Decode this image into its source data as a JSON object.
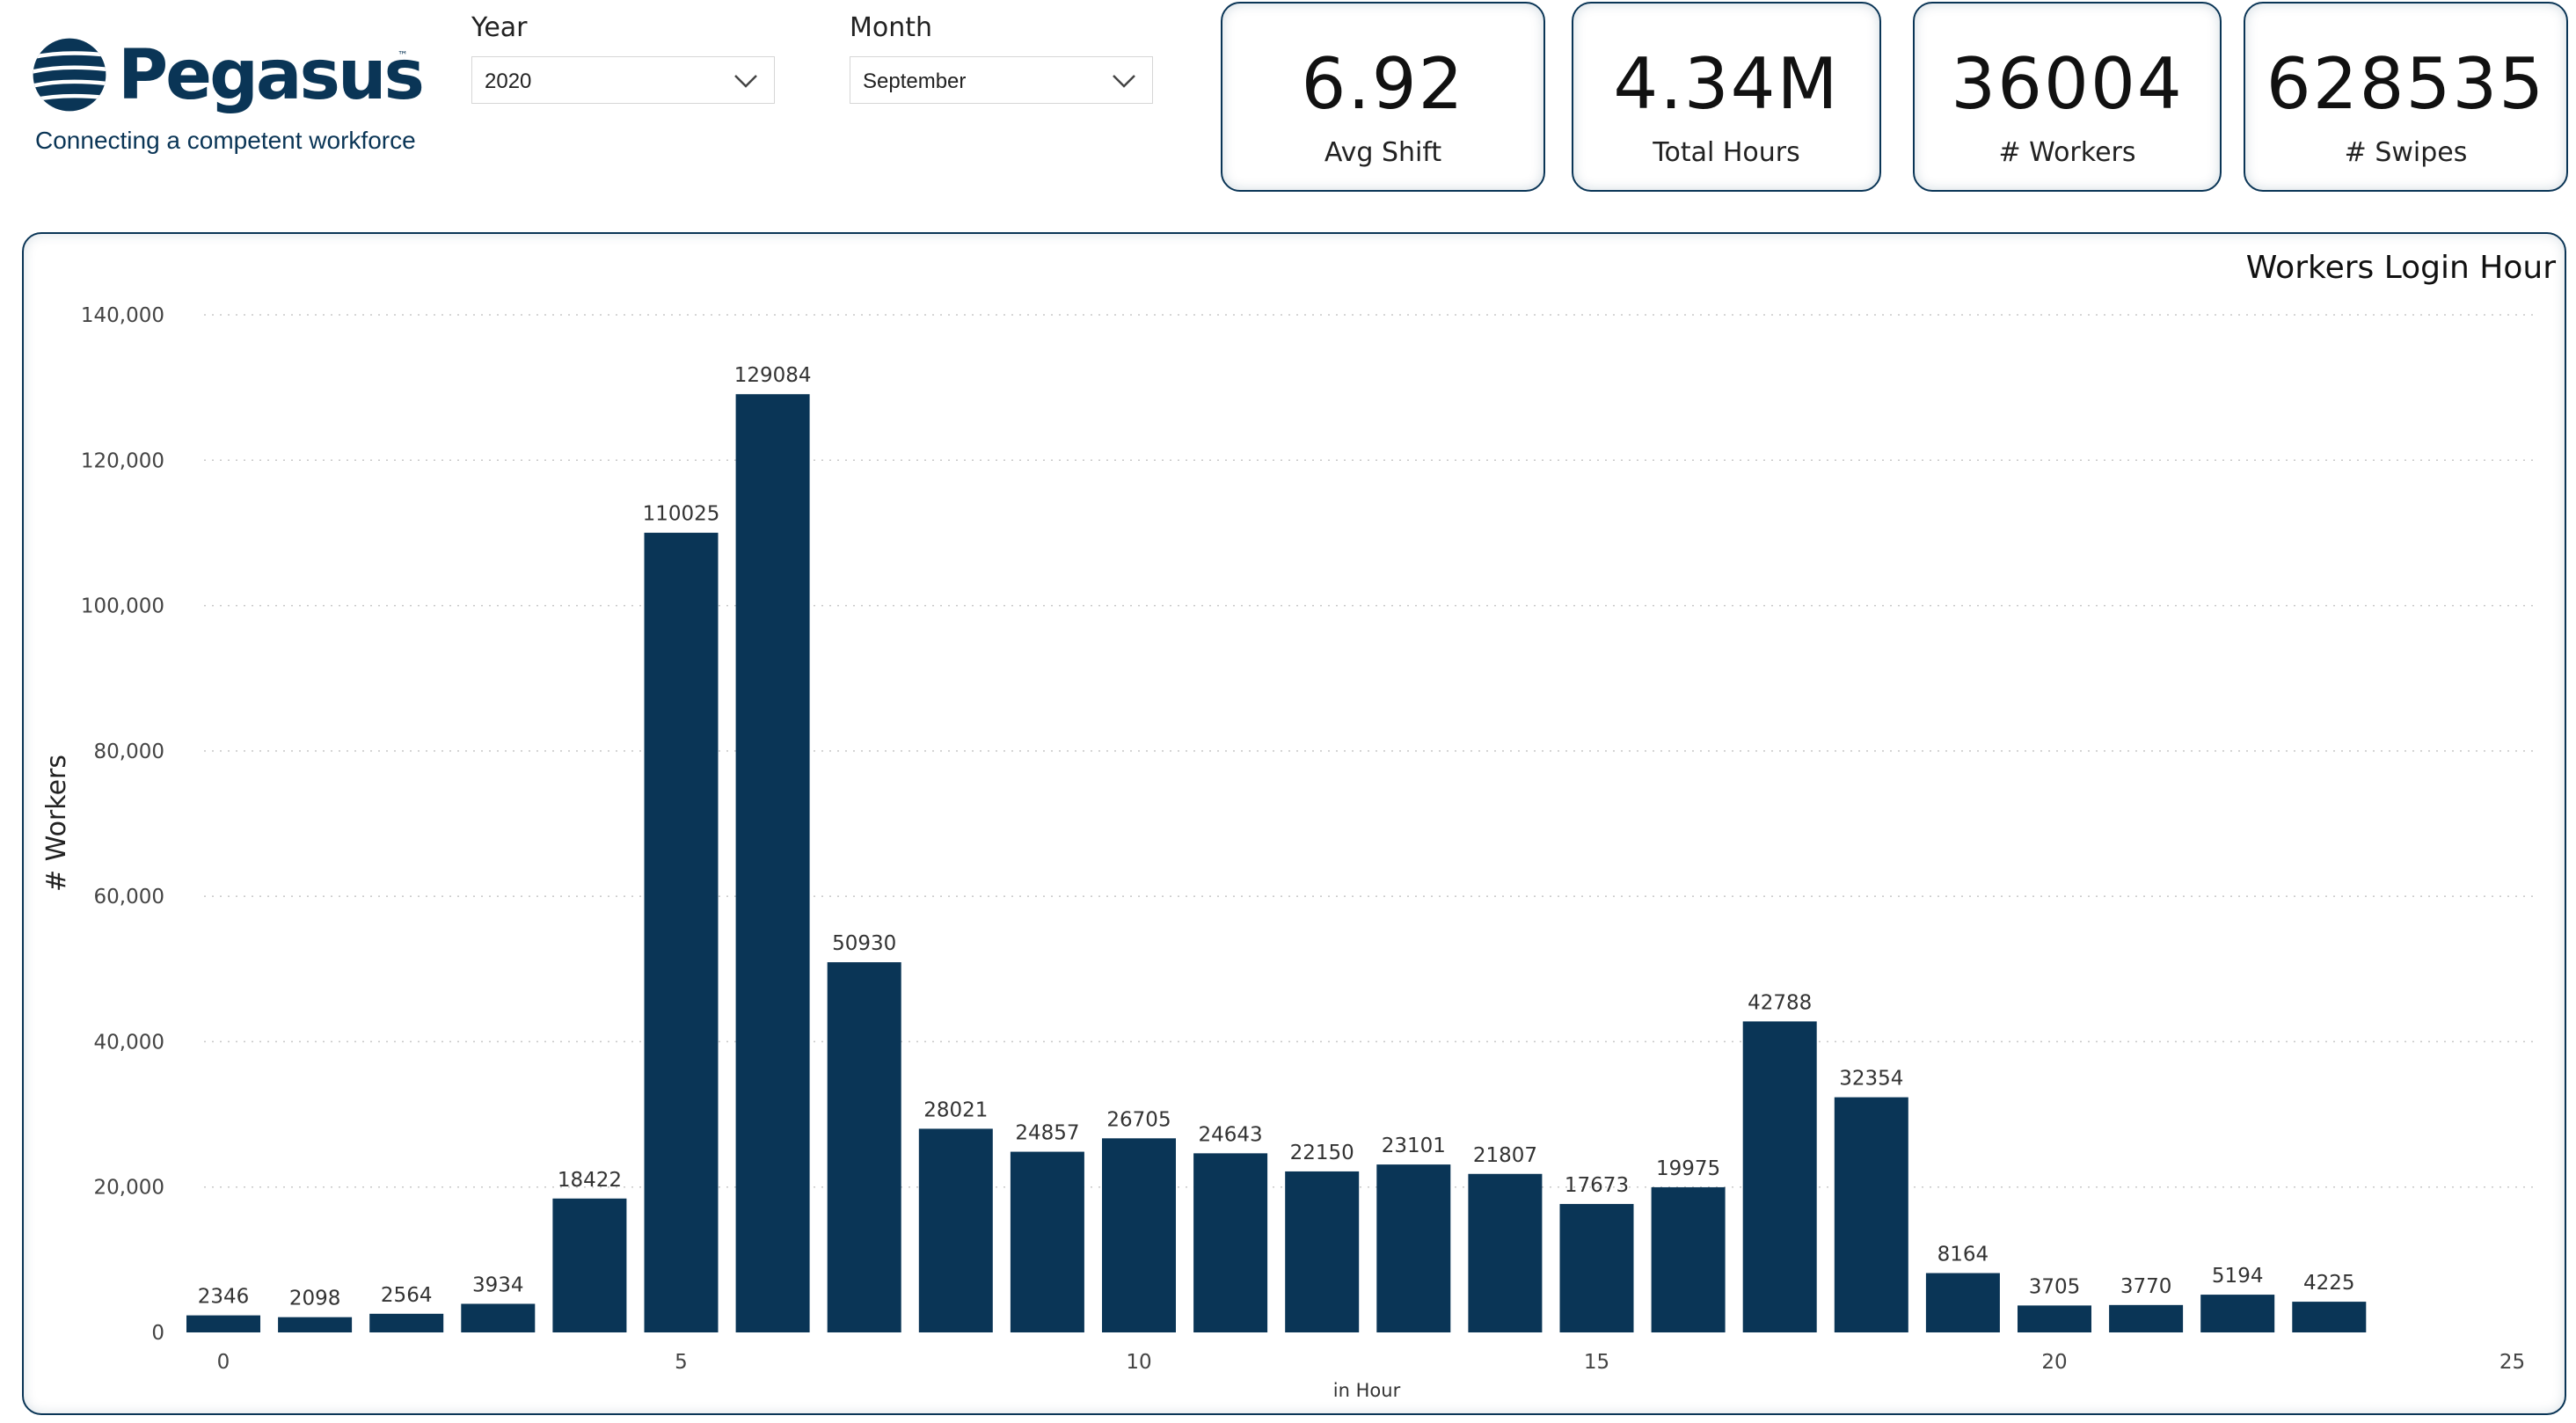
{
  "brand": {
    "name": "Pegasus",
    "trademark": "™",
    "tagline": "Connecting a competent workforce"
  },
  "filters": {
    "year": {
      "label": "Year",
      "value": "2020"
    },
    "month": {
      "label": "Month",
      "value": "September"
    }
  },
  "kpis": [
    {
      "value": "6.92",
      "label": "Avg Shift"
    },
    {
      "value": "4.34M",
      "label": "Total Hours"
    },
    {
      "value": "36004",
      "label": "# Workers"
    },
    {
      "value": "628535",
      "label": "# Swipes"
    }
  ],
  "colors": {
    "bar": "#0a3556",
    "accent": "#0a3556"
  },
  "chart_data": {
    "type": "bar",
    "title": "Workers Login Hour",
    "xlabel": "in Hour",
    "ylabel": "# Workers",
    "x": [
      0,
      1,
      2,
      3,
      4,
      5,
      6,
      7,
      8,
      9,
      10,
      11,
      12,
      13,
      14,
      15,
      16,
      17,
      18,
      19,
      20,
      21,
      22,
      23
    ],
    "values": [
      2346,
      2098,
      2564,
      3934,
      18422,
      110025,
      129084,
      50930,
      28021,
      24857,
      26705,
      24643,
      22150,
      23101,
      21807,
      17673,
      19975,
      42788,
      32354,
      8164,
      3705,
      3770,
      5194,
      4225
    ],
    "xlim": [
      0,
      25
    ],
    "ylim": [
      0,
      140000
    ],
    "xticks": [
      "0",
      "5",
      "10",
      "15",
      "20",
      "25"
    ],
    "yticks": [
      "0",
      "20,000",
      "40,000",
      "60,000",
      "80,000",
      "100,000",
      "120,000",
      "140,000"
    ],
    "grid": true,
    "data_labels": true
  }
}
